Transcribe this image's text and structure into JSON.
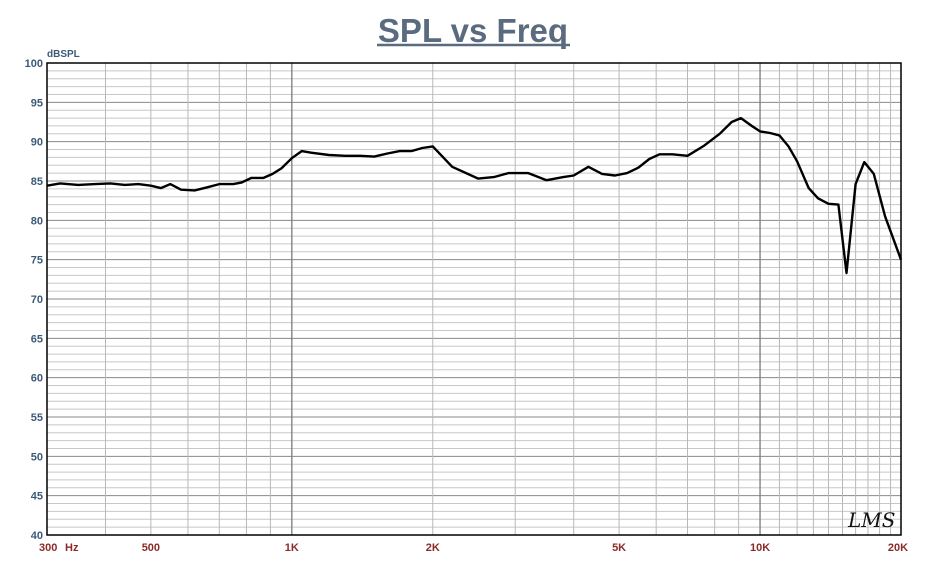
{
  "chart_data": {
    "type": "line",
    "title": "SPL vs Freq",
    "ylabel": "dBSPL",
    "xlabel": "",
    "x_scale": "log",
    "xlim": [
      300,
      20000
    ],
    "ylim": [
      40,
      100
    ],
    "grid": true,
    "legend": "none",
    "y_ticks": [
      40,
      45,
      50,
      55,
      60,
      65,
      70,
      75,
      80,
      85,
      90,
      95,
      100
    ],
    "x_ticks": [
      {
        "value": 300,
        "label": "300"
      },
      {
        "value": 500,
        "label": "500"
      },
      {
        "value": 1000,
        "label": "1K"
      },
      {
        "value": 2000,
        "label": "2K"
      },
      {
        "value": 5000,
        "label": "5K"
      },
      {
        "value": 10000,
        "label": "10K"
      },
      {
        "value": 20000,
        "label": "20K"
      }
    ],
    "x_unit_label": "Hz",
    "watermark": "LMS",
    "line_color": "#000000",
    "series": [
      {
        "x": [
          300,
          320,
          350,
          380,
          410,
          440,
          470,
          500,
          525,
          550,
          580,
          620,
          660,
          700,
          750,
          780,
          820,
          870,
          910,
          950,
          1000,
          1050,
          1100,
          1200,
          1300,
          1400,
          1500,
          1600,
          1700,
          1800,
          1900,
          2000,
          2200,
          2500,
          2700,
          2900,
          3200,
          3500,
          3800,
          4000,
          4300,
          4600,
          4900,
          5200,
          5500,
          5800,
          6100,
          6500,
          7000,
          7600,
          8200,
          8700,
          9100,
          9600,
          10000,
          10500,
          11000,
          11500,
          12000,
          12700,
          13300,
          14000,
          14700,
          15300,
          16000,
          16700,
          17500,
          18500,
          20000
        ],
        "y": [
          84.4,
          84.7,
          84.5,
          84.6,
          84.7,
          84.5,
          84.6,
          84.4,
          84.1,
          84.6,
          83.9,
          83.8,
          84.2,
          84.6,
          84.6,
          84.8,
          85.4,
          85.4,
          85.9,
          86.6,
          87.9,
          88.8,
          88.6,
          88.3,
          88.2,
          88.2,
          88.1,
          88.5,
          88.8,
          88.8,
          89.2,
          89.4,
          86.8,
          85.3,
          85.5,
          86.0,
          86.0,
          85.1,
          85.5,
          85.7,
          86.8,
          85.9,
          85.7,
          86.0,
          86.7,
          87.8,
          88.4,
          88.4,
          88.2,
          89.5,
          91.0,
          92.5,
          93.0,
          92.0,
          91.3,
          91.1,
          90.8,
          89.4,
          87.5,
          84.1,
          82.8,
          82.1,
          82.0,
          73.3,
          84.6,
          87.4,
          85.9,
          80.5,
          75.0
        ]
      }
    ]
  }
}
